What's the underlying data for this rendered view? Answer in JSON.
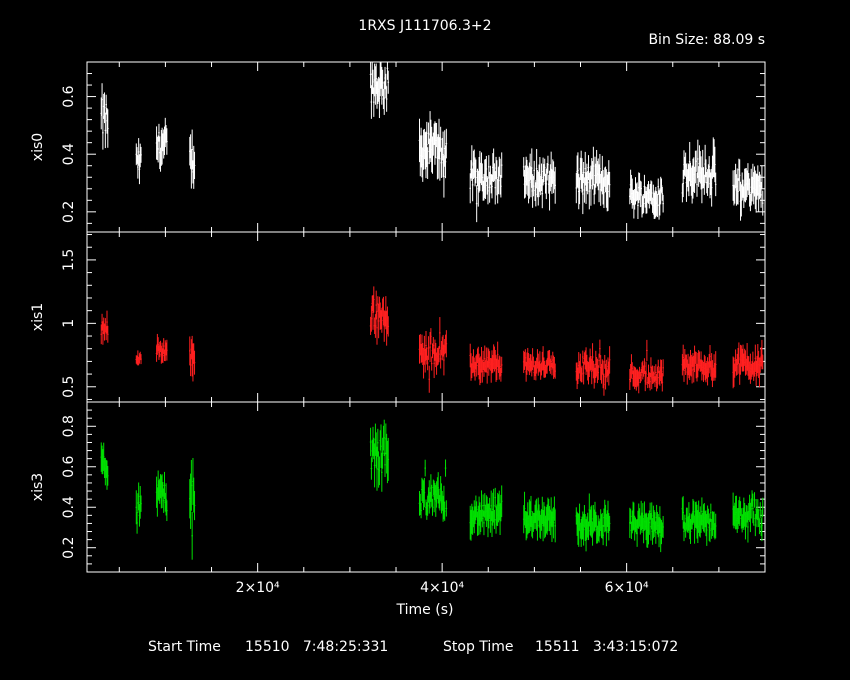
{
  "title": "1RXS J111706.3+2",
  "bin_size": "Bin Size: 88.09 s",
  "xlabel": "Time (s)",
  "footer": {
    "start_label": "Start Time",
    "start_value": "15510   7:48:25:331",
    "stop_label": "Stop Time",
    "stop_value": "15511   3:43:15:072"
  },
  "colors": {
    "xis0": "#ffffff",
    "xis1": "#ff2020",
    "xis3": "#00e000",
    "frame": "#ffffff"
  },
  "chart_data": [
    {
      "type": "scatter",
      "name": "xis0",
      "ylabel": "xis0",
      "color": "#ffffff",
      "xlim": [
        1500,
        75000
      ],
      "ylim": [
        0.13,
        0.72
      ],
      "yticks": [
        0.2,
        0.4,
        0.6
      ],
      "ytick_labels": [
        "0.2",
        "0.4",
        "0.6"
      ],
      "xticks": [
        20000,
        40000,
        60000
      ],
      "segments": [
        {
          "x0": 3000,
          "x1": 3800,
          "mean": 0.52,
          "amp": 0.07,
          "err": 0.05
        },
        {
          "x0": 6800,
          "x1": 7400,
          "mean": 0.37,
          "amp": 0.04,
          "err": 0.04
        },
        {
          "x0": 9000,
          "x1": 10200,
          "mean": 0.43,
          "amp": 0.05,
          "err": 0.05
        },
        {
          "x0": 12600,
          "x1": 13200,
          "mean": 0.38,
          "amp": 0.05,
          "err": 0.06
        },
        {
          "x0": 32200,
          "x1": 34200,
          "mean": 0.64,
          "amp": 0.06,
          "err": 0.05
        },
        {
          "x0": 37500,
          "x1": 40500,
          "mean": 0.42,
          "amp": 0.06,
          "err": 0.06
        },
        {
          "x0": 43000,
          "x1": 46500,
          "mean": 0.32,
          "amp": 0.05,
          "err": 0.05
        },
        {
          "x0": 48800,
          "x1": 52300,
          "mean": 0.31,
          "amp": 0.05,
          "err": 0.05
        },
        {
          "x0": 54500,
          "x1": 58200,
          "mean": 0.31,
          "amp": 0.05,
          "err": 0.05
        },
        {
          "x0": 60300,
          "x1": 64000,
          "mean": 0.26,
          "amp": 0.04,
          "err": 0.04
        },
        {
          "x0": 66000,
          "x1": 69700,
          "mean": 0.34,
          "amp": 0.05,
          "err": 0.05
        },
        {
          "x0": 71500,
          "x1": 74800,
          "mean": 0.28,
          "amp": 0.05,
          "err": 0.05
        }
      ]
    },
    {
      "type": "scatter",
      "name": "xis1",
      "ylabel": "xis1",
      "color": "#ff2020",
      "xlim": [
        1500,
        75000
      ],
      "ylim": [
        0.38,
        1.72
      ],
      "yticks": [
        0.5,
        1.0,
        1.5
      ],
      "ytick_labels": [
        "0.5",
        "1",
        "1.5"
      ],
      "xticks": [
        20000,
        40000,
        60000
      ],
      "segments": [
        {
          "x0": 3000,
          "x1": 3800,
          "mean": 0.97,
          "amp": 0.06,
          "err": 0.07
        },
        {
          "x0": 6800,
          "x1": 7400,
          "mean": 0.72,
          "amp": 0.04,
          "err": 0.05
        },
        {
          "x0": 9000,
          "x1": 10200,
          "mean": 0.79,
          "amp": 0.05,
          "err": 0.06
        },
        {
          "x0": 12600,
          "x1": 13200,
          "mean": 0.73,
          "amp": 0.09,
          "err": 0.12
        },
        {
          "x0": 32200,
          "x1": 34200,
          "mean": 1.08,
          "amp": 0.12,
          "err": 0.1
        },
        {
          "x0": 37500,
          "x1": 40500,
          "mean": 0.76,
          "amp": 0.08,
          "err": 0.09
        },
        {
          "x0": 43000,
          "x1": 46500,
          "mean": 0.68,
          "amp": 0.07,
          "err": 0.08
        },
        {
          "x0": 48800,
          "x1": 52300,
          "mean": 0.67,
          "amp": 0.06,
          "err": 0.07
        },
        {
          "x0": 54500,
          "x1": 58200,
          "mean": 0.66,
          "amp": 0.08,
          "err": 0.08
        },
        {
          "x0": 60300,
          "x1": 64000,
          "mean": 0.6,
          "amp": 0.07,
          "err": 0.07
        },
        {
          "x0": 66000,
          "x1": 69700,
          "mean": 0.67,
          "amp": 0.07,
          "err": 0.08
        },
        {
          "x0": 71500,
          "x1": 74800,
          "mean": 0.68,
          "amp": 0.08,
          "err": 0.09
        }
      ]
    },
    {
      "type": "scatter",
      "name": "xis3",
      "ylabel": "xis3",
      "color": "#00e000",
      "xlim": [
        1500,
        75000
      ],
      "ylim": [
        0.08,
        0.92
      ],
      "yticks": [
        0.2,
        0.4,
        0.6,
        0.8
      ],
      "ytick_labels": [
        "0.2",
        "0.4",
        "0.6",
        "0.8"
      ],
      "xticks": [
        20000,
        40000,
        60000
      ],
      "xtick_labels": [
        "2×10⁴",
        "4×10⁴",
        "6×10⁴"
      ],
      "segments": [
        {
          "x0": 3000,
          "x1": 3800,
          "mean": 0.6,
          "amp": 0.05,
          "err": 0.06
        },
        {
          "x0": 6800,
          "x1": 7400,
          "mean": 0.41,
          "amp": 0.05,
          "err": 0.06
        },
        {
          "x0": 9000,
          "x1": 10200,
          "mean": 0.46,
          "amp": 0.05,
          "err": 0.06
        },
        {
          "x0": 12600,
          "x1": 13200,
          "mean": 0.45,
          "amp": 0.08,
          "err": 0.1
        },
        {
          "x0": 32200,
          "x1": 34200,
          "mean": 0.66,
          "amp": 0.09,
          "err": 0.08
        },
        {
          "x0": 37500,
          "x1": 40500,
          "mean": 0.44,
          "amp": 0.06,
          "err": 0.06
        },
        {
          "x0": 43000,
          "x1": 46500,
          "mean": 0.36,
          "amp": 0.05,
          "err": 0.06
        },
        {
          "x0": 48800,
          "x1": 52300,
          "mean": 0.35,
          "amp": 0.05,
          "err": 0.06
        },
        {
          "x0": 54500,
          "x1": 58200,
          "mean": 0.31,
          "amp": 0.05,
          "err": 0.06
        },
        {
          "x0": 60300,
          "x1": 64000,
          "mean": 0.31,
          "amp": 0.05,
          "err": 0.06
        },
        {
          "x0": 66000,
          "x1": 69700,
          "mean": 0.33,
          "amp": 0.05,
          "err": 0.06
        },
        {
          "x0": 71500,
          "x1": 74800,
          "mean": 0.35,
          "amp": 0.05,
          "err": 0.06
        }
      ]
    }
  ]
}
